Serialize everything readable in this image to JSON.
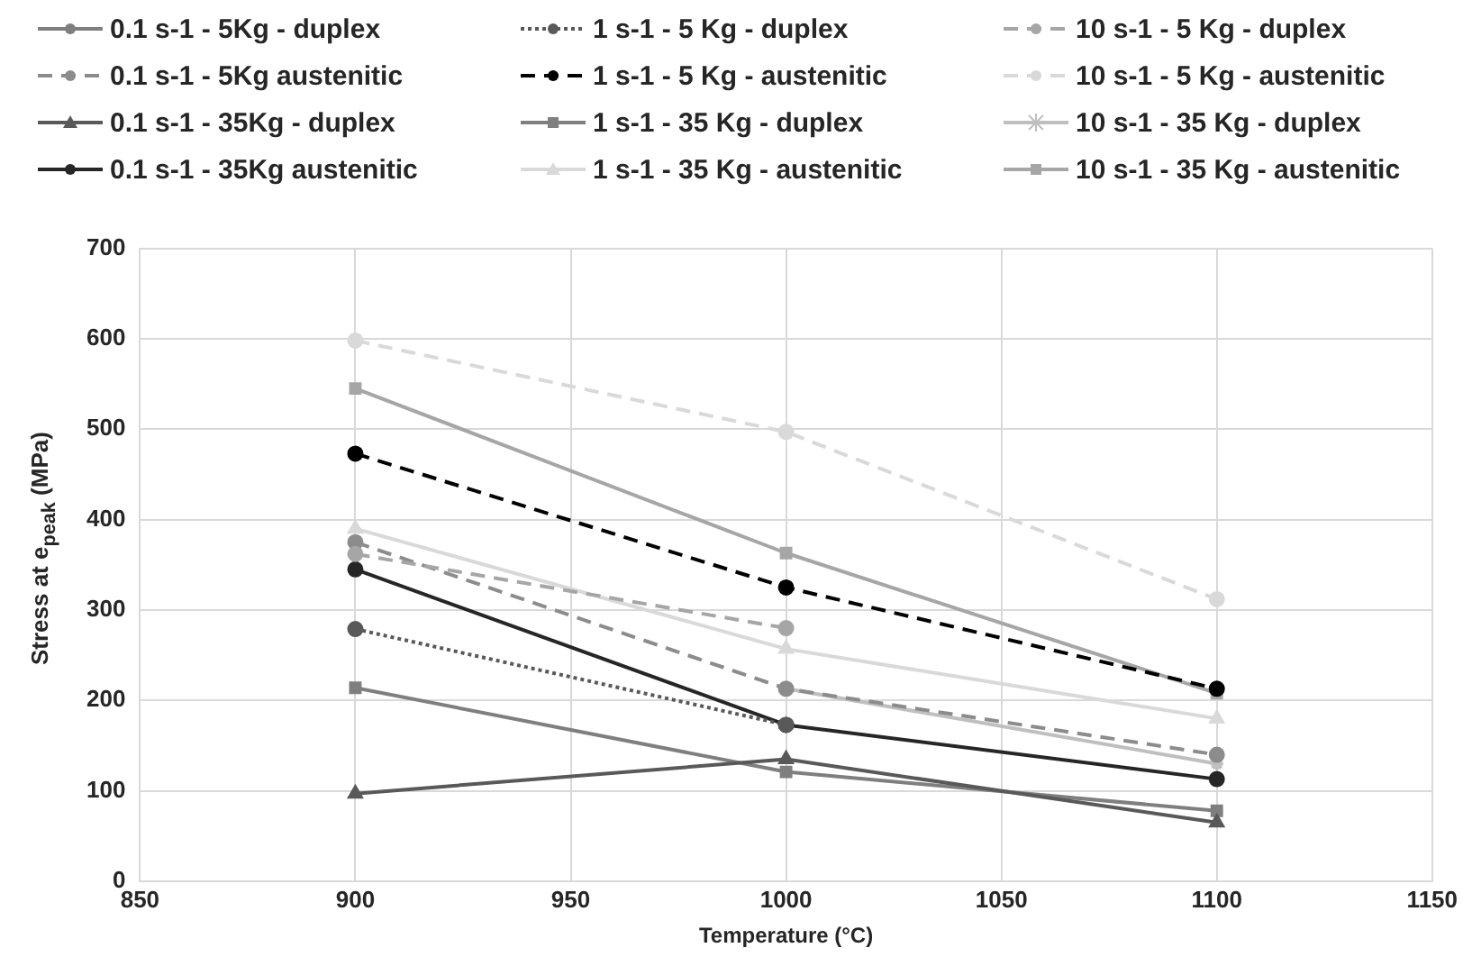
{
  "chart_data": {
    "type": "line",
    "xlabel": "Temperature (°C)",
    "ylabel": "Stress at e$_{peak}$ (MPa)",
    "x": [
      900,
      1000,
      1100
    ],
    "xlim": [
      850,
      1150
    ],
    "xticks": [
      850,
      900,
      950,
      1000,
      1050,
      1100,
      1150
    ],
    "ylim": [
      0,
      700
    ],
    "yticks": [
      0,
      100,
      200,
      300,
      400,
      500,
      600,
      700
    ],
    "grid": true,
    "legend": "top",
    "series": [
      {
        "name": "0.1 s-1 - 5Kg - duplex",
        "color": "#7f7f7f",
        "marker": "circle",
        "line_style": "solid",
        "values": [
          null,
          null,
          null
        ]
      },
      {
        "name": "1 s-1 - 5 Kg - duplex",
        "color": "#595959",
        "marker": "circle",
        "line_style": "dotted",
        "values": [
          279,
          173,
          null
        ]
      },
      {
        "name": "10 s-1 - 5 Kg - duplex",
        "color": "#a6a6a6",
        "marker": "circle",
        "line_style": "dashed",
        "values": [
          362,
          280,
          null
        ]
      },
      {
        "name": "0.1 s-1 - 5Kg austenitic",
        "color": "#8c8c8c",
        "marker": "circle",
        "line_style": "dashed",
        "values": [
          375,
          213,
          140
        ]
      },
      {
        "name": "1 s-1 - 5 Kg - austenitic",
        "color": "#000000",
        "marker": "circle",
        "line_style": "dashed",
        "values": [
          473,
          325,
          213
        ]
      },
      {
        "name": "10 s-1 - 5 Kg - austenitic",
        "color": "#d9d9d9",
        "marker": "circle",
        "line_style": "dashed",
        "values": [
          598,
          497,
          312
        ]
      },
      {
        "name": "0.1 s-1 - 35Kg - duplex",
        "color": "#595959",
        "marker": "triangle",
        "line_style": "solid",
        "values": [
          97,
          135,
          65
        ]
      },
      {
        "name": "1 s-1 - 35 Kg - duplex",
        "color": "#7f7f7f",
        "marker": "square",
        "line_style": "solid",
        "values": [
          214,
          121,
          78
        ]
      },
      {
        "name": "10 s-1 - 35 Kg - duplex",
        "color": "#bfbfbf",
        "marker": "cross",
        "line_style": "solid",
        "values": [
          null,
          213,
          130
        ]
      },
      {
        "name": "0.1 s-1 - 35Kg austenitic",
        "color": "#262626",
        "marker": "circle",
        "line_style": "solid",
        "values": [
          345,
          173,
          113
        ]
      },
      {
        "name": "1 s-1 - 35 Kg - austenitic",
        "color": "#d9d9d9",
        "marker": "triangle",
        "line_style": "solid",
        "values": [
          390,
          257,
          180
        ]
      },
      {
        "name": "10 s-1 - 35 Kg - austenitic",
        "color": "#a6a6a6",
        "marker": "square",
        "line_style": "solid",
        "values": [
          545,
          363,
          208
        ]
      }
    ]
  }
}
